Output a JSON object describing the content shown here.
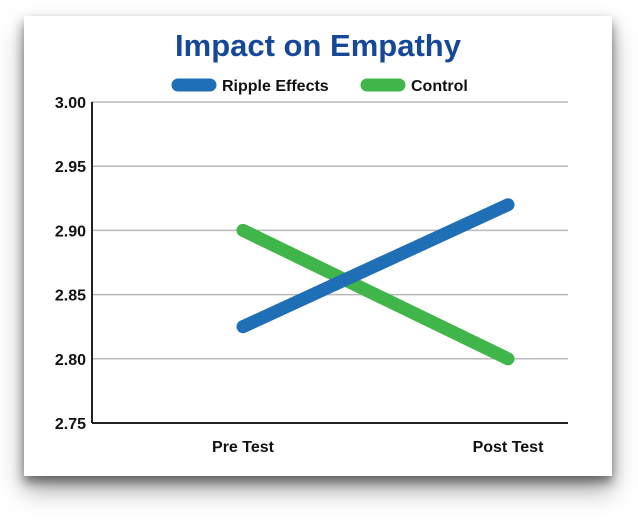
{
  "chart_data": {
    "type": "line",
    "title": "Impact on Empathy",
    "xlabel": "",
    "ylabel": "",
    "categories": [
      "Pre Test",
      "Post Test"
    ],
    "series": [
      {
        "name": "Ripple Effects",
        "values": [
          2.825,
          2.92
        ],
        "color": "#1f6fb6"
      },
      {
        "name": "Control",
        "values": [
          2.9,
          2.8
        ],
        "color": "#40b54a"
      }
    ],
    "ylim": [
      2.75,
      3.0
    ],
    "yticks": [
      "3.00",
      "2.95",
      "2.90",
      "2.85",
      "2.80",
      "2.75"
    ],
    "grid": true,
    "legend_position": "top-center",
    "title_color": "#16489a"
  }
}
